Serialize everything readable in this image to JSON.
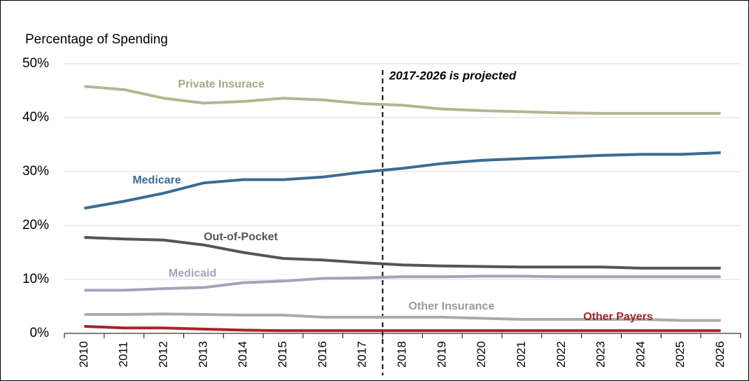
{
  "chart_data": {
    "type": "line",
    "ylabel": "Percentage of Spending",
    "annotation": "2017-2026 is projected",
    "categories": [
      "2010",
      "2011",
      "2012",
      "2013",
      "2014",
      "2015",
      "2016",
      "2017",
      "2018",
      "2019",
      "2020",
      "2021",
      "2022",
      "2023",
      "2024",
      "2025",
      "2026"
    ],
    "ylim": [
      0,
      50
    ],
    "yticks": [
      {
        "value": 0,
        "label": "0%"
      },
      {
        "value": 10,
        "label": "10%"
      },
      {
        "value": 20,
        "label": "20%"
      },
      {
        "value": 30,
        "label": "30%"
      },
      {
        "value": 40,
        "label": "40%"
      },
      {
        "value": 50,
        "label": "50%"
      }
    ],
    "grid": true,
    "series": [
      {
        "name": "Private Insurace",
        "color": "#b5b592",
        "values": [
          45.8,
          45.2,
          43.6,
          42.7,
          43.0,
          43.6,
          43.3,
          42.6,
          42.3,
          41.6,
          41.3,
          41.1,
          40.9,
          40.8,
          40.8,
          40.8,
          40.8
        ]
      },
      {
        "name": "Medicare",
        "color": "#3a6c92",
        "values": [
          23.2,
          24.5,
          26.0,
          27.9,
          28.5,
          28.5,
          29.0,
          29.9,
          30.6,
          31.5,
          32.1,
          32.4,
          32.7,
          33.0,
          33.2,
          33.2,
          33.5
        ]
      },
      {
        "name": "Out-of-Pocket",
        "color": "#555555",
        "values": [
          17.8,
          17.5,
          17.3,
          16.4,
          15.0,
          13.9,
          13.6,
          13.1,
          12.7,
          12.5,
          12.4,
          12.3,
          12.3,
          12.3,
          12.1,
          12.1,
          12.1
        ]
      },
      {
        "name": "Medicaid",
        "color": "#a6a2b9",
        "values": [
          8.0,
          8.0,
          8.3,
          8.5,
          9.4,
          9.7,
          10.2,
          10.3,
          10.5,
          10.5,
          10.6,
          10.6,
          10.5,
          10.5,
          10.5,
          10.5,
          10.5
        ]
      },
      {
        "name": "Other Insurance",
        "color": "#aaaaaa",
        "values": [
          3.5,
          3.5,
          3.6,
          3.5,
          3.4,
          3.4,
          3.0,
          3.0,
          3.0,
          3.0,
          2.8,
          2.6,
          2.6,
          2.6,
          2.6,
          2.4,
          2.4
        ]
      },
      {
        "name": "Other Payers",
        "color": "#a4262c",
        "values": [
          1.3,
          1.0,
          1.0,
          0.8,
          0.6,
          0.5,
          0.5,
          0.5,
          0.5,
          0.5,
          0.5,
          0.5,
          0.5,
          0.5,
          0.5,
          0.5,
          0.5
        ]
      }
    ]
  }
}
